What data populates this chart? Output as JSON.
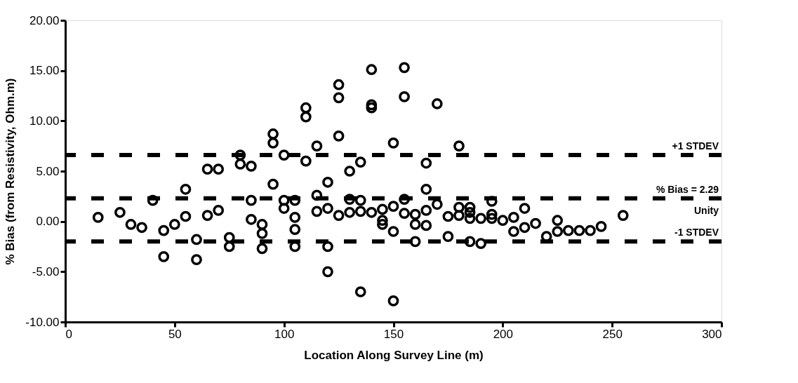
{
  "chart_data": {
    "type": "scatter",
    "xlabel": "Location Along Survey Line (m)",
    "ylabel": "% Bias (from Resistivity, Ohm.m)",
    "xlim": [
      0,
      300
    ],
    "xticks": [
      0,
      50,
      100,
      150,
      200,
      250,
      300
    ],
    "ylim": [
      -10,
      20
    ],
    "yticks": [
      {
        "value": -10,
        "label": "-10.00"
      },
      {
        "value": -5,
        "label": "-5.00"
      },
      {
        "value": 0,
        "label": "0.00"
      },
      {
        "value": 5,
        "label": "5.00"
      },
      {
        "value": 10,
        "label": "10.00"
      },
      {
        "value": 15,
        "label": "15.00"
      },
      {
        "value": 20,
        "label": "20.00"
      }
    ],
    "grid": false,
    "marker": "circle",
    "x": [
      15,
      25,
      30,
      35,
      40,
      45,
      45,
      50,
      55,
      55,
      60,
      60,
      65,
      65,
      70,
      70,
      75,
      75,
      80,
      80,
      85,
      85,
      85,
      90,
      90,
      90,
      95,
      95,
      95,
      100,
      100,
      100,
      105,
      105,
      105,
      105,
      110,
      110,
      110,
      115,
      115,
      115,
      120,
      120,
      120,
      120,
      125,
      125,
      125,
      125,
      130,
      130,
      130,
      135,
      135,
      135,
      135,
      140,
      140,
      140,
      140,
      145,
      145,
      145,
      150,
      150,
      150,
      150,
      155,
      155,
      155,
      155,
      160,
      160,
      160,
      165,
      165,
      165,
      165,
      170,
      170,
      175,
      175,
      180,
      180,
      180,
      185,
      185,
      185,
      185,
      190,
      190,
      195,
      195,
      195,
      200,
      205,
      205,
      210,
      210,
      215,
      220,
      225,
      225,
      230,
      235,
      240,
      245,
      255
    ],
    "series": [
      {
        "color": "#000000",
        "values": [
          0.4,
          0.9,
          -0.3,
          -0.6,
          2.1,
          -0.9,
          -3.5,
          -0.3,
          3.2,
          0.5,
          -1.8,
          -3.8,
          5.2,
          0.6,
          5.2,
          1.1,
          -1.6,
          -2.5,
          6.6,
          5.7,
          5.5,
          2.1,
          0.2,
          -0.3,
          -1.2,
          -2.7,
          8.7,
          7.8,
          3.7,
          6.6,
          2.1,
          1.3,
          2.1,
          0.4,
          -0.8,
          -2.5,
          11.3,
          10.4,
          6.0,
          7.5,
          2.6,
          1.0,
          3.9,
          1.3,
          -2.5,
          -5.0,
          13.6,
          12.3,
          8.5,
          0.6,
          5.0,
          2.2,
          0.9,
          5.9,
          2.1,
          1.0,
          -7.0,
          15.1,
          11.6,
          11.3,
          0.9,
          1.2,
          0.1,
          -0.3,
          7.8,
          1.5,
          -1.0,
          -7.9,
          15.3,
          12.4,
          2.2,
          0.8,
          0.7,
          -0.3,
          -2.0,
          5.8,
          3.2,
          1.1,
          -0.4,
          11.7,
          1.7,
          0.5,
          -1.5,
          7.5,
          1.4,
          0.6,
          1.4,
          0.9,
          0.3,
          -2.0,
          0.3,
          -2.2,
          2.0,
          0.7,
          0.3,
          0.1,
          0.4,
          -1.0,
          1.3,
          -0.6,
          -0.2,
          -1.5,
          0.1,
          -1.0,
          -0.9,
          -0.9,
          -0.9,
          -0.5,
          0.6
        ]
      }
    ],
    "ref_lines": [
      {
        "axis": "y",
        "value": 6.6,
        "label": "+1 STDEV",
        "color": "#000000",
        "line_style": "dashed"
      },
      {
        "axis": "y",
        "value": 2.29,
        "label": "% Bias = 2.29",
        "color": "#000000",
        "line_style": "dashed"
      },
      {
        "axis": "y",
        "value": -2.0,
        "label": "-1 STDEV",
        "color": "#000000",
        "line_style": "dashed"
      }
    ],
    "annotations": [
      "Unity"
    ]
  }
}
